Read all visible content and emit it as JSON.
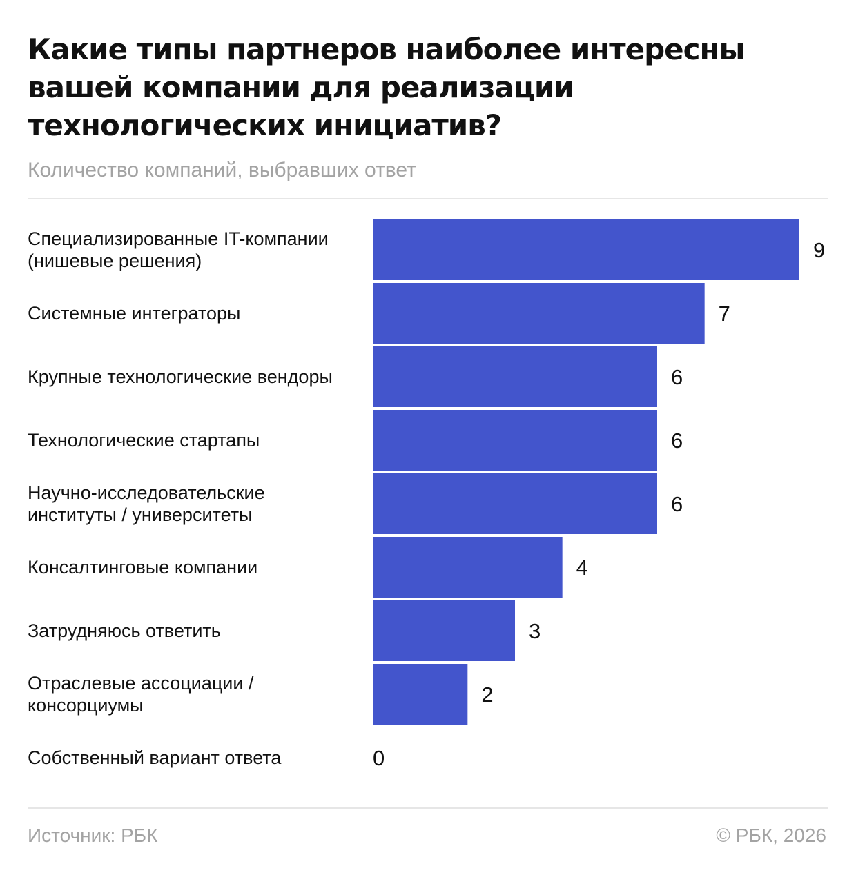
{
  "title": "Какие типы партнеров наиболее интересны вашей компании для реализации технологических инициатив?",
  "subtitle": "Количество компаний, выбравших ответ",
  "colors": {
    "bar": "#4355cc",
    "text": "#111111",
    "muted": "#a3a3a3",
    "rule": "#e6e6e6"
  },
  "chart_data": {
    "type": "bar",
    "orientation": "horizontal",
    "categories": [
      [
        "Специализированные IT-компании",
        "(нишевые решения)"
      ],
      [
        "Системные интеграторы"
      ],
      [
        "Крупные технологические вендоры"
      ],
      [
        "Технологические стартапы"
      ],
      [
        "Научно-исследовательские",
        "институты / университеты"
      ],
      [
        "Консалтинговые компании"
      ],
      [
        "Затрудняюсь ответить"
      ],
      [
        "Отраслевые ассоциации /",
        "консорциумы"
      ],
      [
        "Собственный вариант ответа"
      ]
    ],
    "values": [
      9,
      7,
      6,
      6,
      6,
      4,
      3,
      2,
      0
    ],
    "xlim": [
      0,
      9
    ],
    "grid": false,
    "legend": "none"
  },
  "footer": {
    "source": "Источник: РБК",
    "copyright": "© РБК, 2026"
  }
}
